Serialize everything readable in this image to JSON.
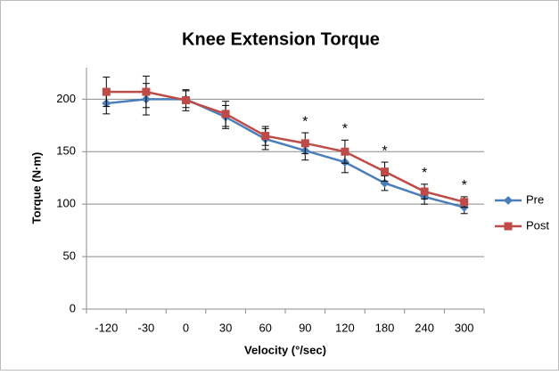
{
  "chart_data": {
    "type": "line",
    "title": "Knee Extension Torque",
    "x_label": "Velocity (°/sec)",
    "y_label": "Torque (N·m)",
    "categories": [
      "-120",
      "-30",
      "0",
      "30",
      "60",
      "90",
      "120",
      "180",
      "240",
      "300"
    ],
    "series": [
      {
        "name": "Pre",
        "color": "#4a7ebb",
        "marker": "diamond",
        "values": [
          196,
          200,
          200,
          183,
          162,
          151,
          140,
          120,
          107,
          97
        ],
        "errors": [
          10,
          15,
          8,
          11,
          10,
          9,
          10,
          7,
          7,
          6
        ]
      },
      {
        "name": "Post",
        "color": "#be4b48",
        "marker": "square",
        "values": [
          207,
          207,
          199,
          186,
          165,
          158,
          150,
          131,
          112,
          102
        ],
        "errors": [
          14,
          15,
          10,
          12,
          9,
          10,
          11,
          9,
          7,
          5
        ]
      }
    ],
    "annotations": [
      {
        "x": "90",
        "text": "*"
      },
      {
        "x": "120",
        "text": "*"
      },
      {
        "x": "180",
        "text": "*"
      },
      {
        "x": "240",
        "text": "*"
      },
      {
        "x": "300",
        "text": "*"
      }
    ],
    "ylim": [
      0,
      230
    ],
    "yticks": [
      0,
      50,
      100,
      150,
      200
    ],
    "grid": true,
    "legend": "right"
  }
}
